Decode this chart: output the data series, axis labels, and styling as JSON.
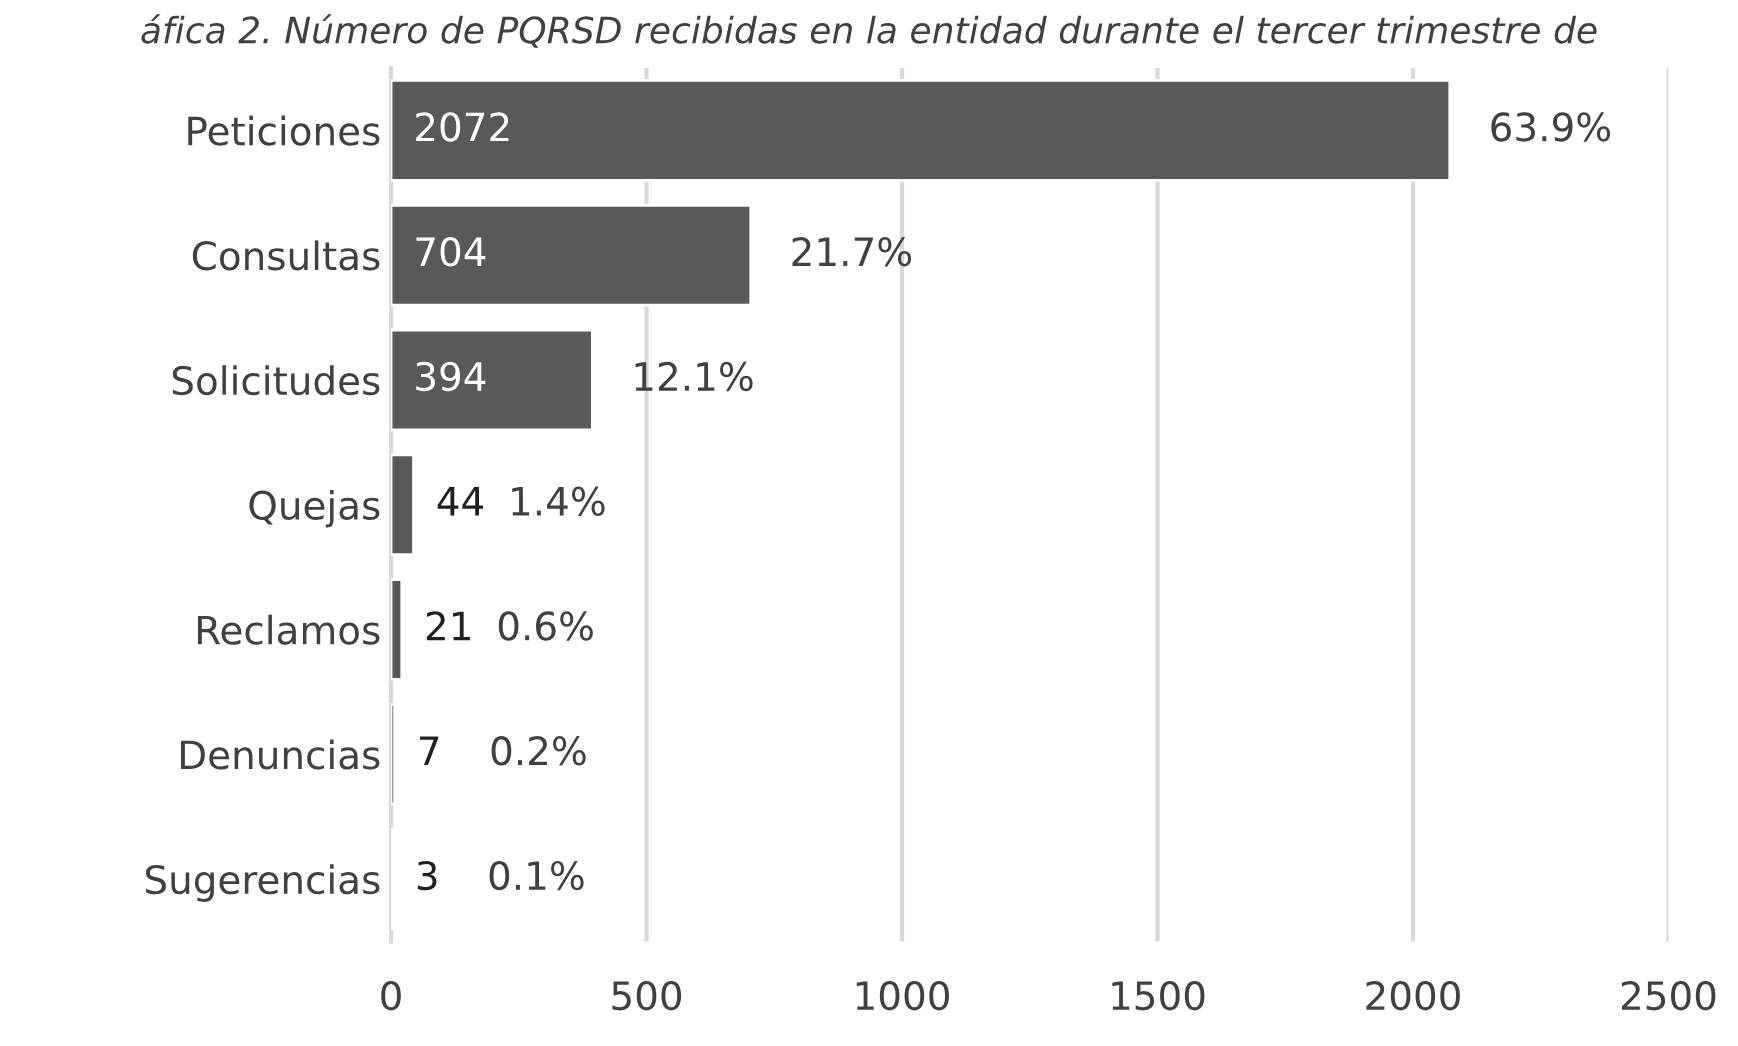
{
  "chart_data": {
    "type": "bar",
    "orientation": "horizontal",
    "title": "áfica 2. Número de PQRSD recibidas en la entidad durante el tercer trimestre de",
    "categories": [
      "Peticiones",
      "Consultas",
      "Solicitudes",
      "Quejas",
      "Reclamos",
      "Denuncias",
      "Sugerencias"
    ],
    "values": [
      2072,
      704,
      394,
      44,
      21,
      7,
      3
    ],
    "color": "#595959",
    "data_labels": true,
    "annotations": [
      {
        "text": "63.9%",
        "x": 2072,
        "y": "Peticiones"
      },
      {
        "text": "21.7%",
        "x": 704,
        "y": "Consultas"
      },
      {
        "text": "12.1%",
        "x": 394,
        "y": "Solicitudes"
      },
      {
        "text": "1.4%",
        "x": 44,
        "y": "Quejas"
      },
      {
        "text": "0.6%",
        "x": 21,
        "y": "Reclamos"
      },
      {
        "text": "0.2%",
        "x": 7,
        "y": "Denuncias"
      },
      {
        "text": "0.1%",
        "x": 3,
        "y": "Sugerencias"
      }
    ],
    "xlim": [
      0,
      2500
    ],
    "xticks": [
      0,
      500,
      1000,
      1500,
      2000,
      2500
    ],
    "grid": "x",
    "legend": false
  }
}
